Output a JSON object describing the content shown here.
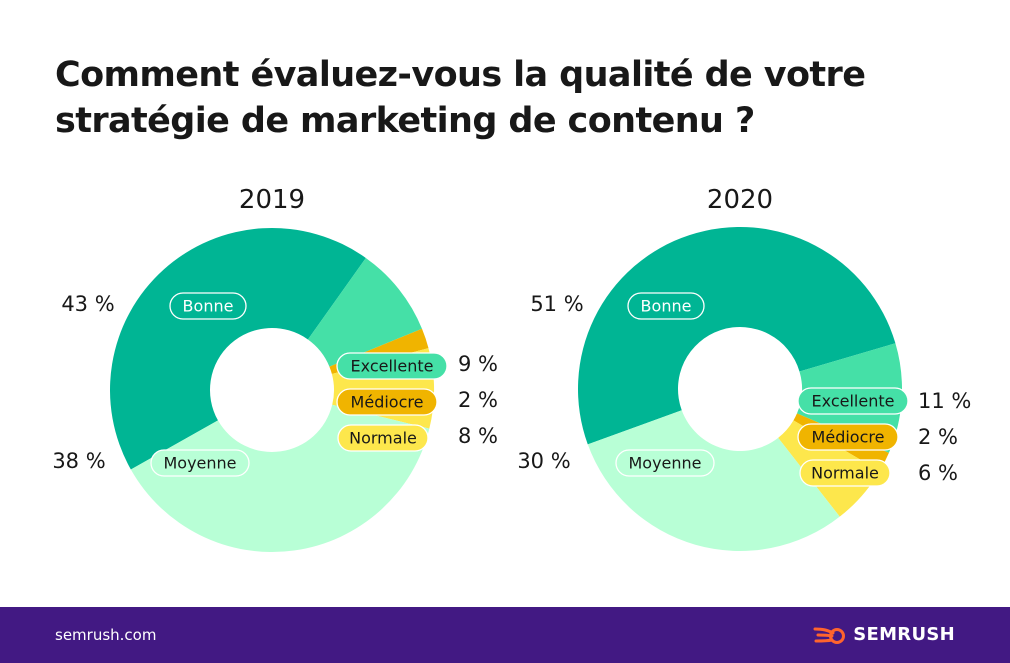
{
  "title": "Comment évaluez-vous la qualité de votre stratégie de marketing de contenu ?",
  "colors": {
    "Bonne": "#00b594",
    "Excellente": "#45e0a7",
    "Médiocre": "#f0b400",
    "Normale": "#fde74c",
    "Moyenne": "#b8ffd6",
    "footer": "#421983",
    "brand": "#ff642d"
  },
  "chart_data": [
    {
      "type": "pie",
      "title": "2019",
      "categories": [
        "Bonne",
        "Excellente",
        "Médiocre",
        "Normale",
        "Moyenne"
      ],
      "values": [
        43,
        9,
        2,
        8,
        38
      ],
      "value_labels": [
        "43 %",
        "9 %",
        "2 %",
        "8 %",
        "38 %"
      ]
    },
    {
      "type": "pie",
      "title": "2020",
      "categories": [
        "Bonne",
        "Excellente",
        "Médiocre",
        "Normale",
        "Moyenne"
      ],
      "values": [
        51,
        11,
        2,
        6,
        30
      ],
      "value_labels": [
        "51 %",
        "11 %",
        "2 %",
        "6 %",
        "30 %"
      ]
    }
  ],
  "footer": {
    "url": "semrush.com",
    "brand": "SEMRUSH",
    "brand_icon": "semrush-flame-icon"
  }
}
